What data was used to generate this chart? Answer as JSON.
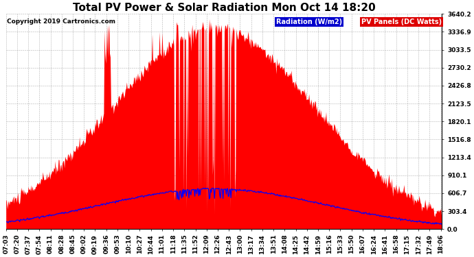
{
  "title": "Total PV Power & Solar Radiation Mon Oct 14 18:20",
  "copyright": "Copyright 2019 Cartronics.com",
  "y_max": 3640.2,
  "y_min": 0.0,
  "y_ticks": [
    0.0,
    303.4,
    606.7,
    910.1,
    1213.4,
    1516.8,
    1820.1,
    2123.5,
    2426.8,
    2730.2,
    3033.5,
    3336.9,
    3640.2
  ],
  "pv_color": "#FF0000",
  "radiation_color": "#0000FF",
  "background_color": "#FFFFFF",
  "grid_color": "#AAAAAA",
  "legend_radiation_bg": "#0000CC",
  "legend_pv_bg": "#DD0000",
  "legend_radiation_text": "Radiation (W/m2)",
  "legend_pv_text": "PV Panels (DC Watts)",
  "title_fontsize": 11,
  "tick_fontsize": 6.5,
  "copyright_fontsize": 6.5
}
